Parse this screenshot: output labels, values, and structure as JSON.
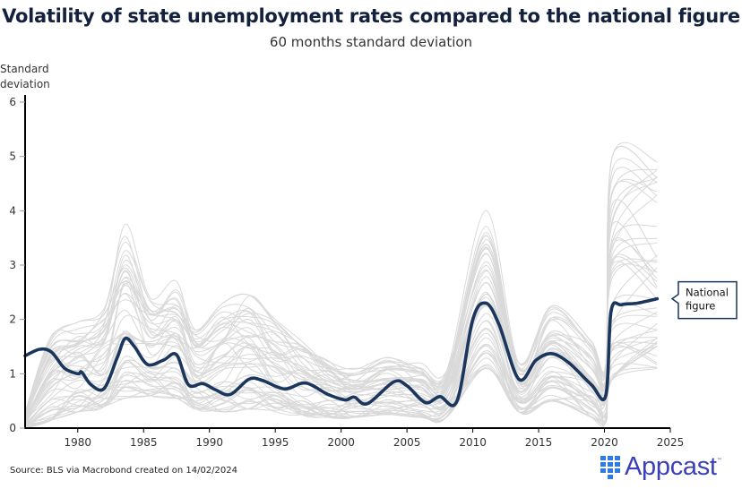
{
  "chart_data": {
    "type": "line",
    "title": "Volatility of state unemployment rates compared to the national figure",
    "subtitle": "60 months standard deviation",
    "ylabel": "Standard deviation",
    "xlabel": "",
    "xlim": [
      1976,
      2025
    ],
    "ylim": [
      0,
      6
    ],
    "x_ticks": [
      1980,
      1985,
      1990,
      1995,
      2000,
      2005,
      2010,
      2015,
      2020,
      2025
    ],
    "y_ticks": [
      0,
      1,
      2,
      3,
      4,
      5,
      6
    ],
    "grid": false,
    "legend": "none",
    "annotations": [
      {
        "text": [
          "National",
          "figure"
        ],
        "target_series": "National figure",
        "placement": "right-end"
      }
    ],
    "series": [
      {
        "name": "National figure",
        "color": "#1b365d",
        "x": [
          1976,
          1977.1,
          1978,
          1979,
          1980,
          1980.3,
          1981,
          1982,
          1983,
          1983.6,
          1984.3,
          1985.3,
          1986.5,
          1987.5,
          1988.4,
          1989.5,
          1990.5,
          1991.6,
          1993,
          1994,
          1995.7,
          1997.3,
          1999,
          2000.3,
          2001,
          2002,
          2004,
          2005,
          2006.4,
          2007.5,
          2008.8,
          2010,
          2011,
          2012,
          2013.5,
          2014.8,
          2016,
          2017.3,
          2019,
          2020.1,
          2020.5,
          2021.3,
          2022.5,
          2024
        ],
        "y": [
          1.33,
          1.45,
          1.4,
          1.1,
          1.0,
          1.03,
          0.8,
          0.73,
          1.3,
          1.65,
          1.5,
          1.17,
          1.25,
          1.35,
          0.8,
          0.82,
          0.7,
          0.62,
          0.9,
          0.88,
          0.72,
          0.83,
          0.62,
          0.52,
          0.57,
          0.45,
          0.85,
          0.78,
          0.47,
          0.58,
          0.5,
          2.0,
          2.3,
          1.9,
          0.9,
          1.25,
          1.37,
          1.2,
          0.8,
          0.6,
          2.15,
          2.27,
          2.3,
          2.38
        ]
      },
      {
        "name": "States (individual series, approx. envelope)",
        "color": "#d9d9d9",
        "count": 51,
        "x": [
          1976,
          1978,
          1980,
          1982,
          1983.6,
          1985.5,
          1987.5,
          1989,
          1991,
          1993,
          1995,
          1997,
          1999,
          2001,
          2003.5,
          2006,
          2008,
          2011,
          2013.5,
          2016,
          2019,
          2020.1,
          2020.6,
          2024
        ],
        "y_min": [
          0.0,
          0.15,
          0.3,
          0.4,
          0.55,
          0.6,
          0.55,
          0.35,
          0.3,
          0.35,
          0.3,
          0.25,
          0.2,
          0.2,
          0.25,
          0.2,
          0.2,
          1.1,
          0.3,
          0.5,
          0.2,
          0.1,
          0.9,
          1.1
        ],
        "y_max": [
          0.3,
          1.7,
          1.95,
          2.2,
          3.75,
          2.4,
          2.7,
          1.8,
          2.3,
          2.45,
          2.0,
          1.6,
          1.3,
          1.1,
          1.3,
          1.2,
          1.05,
          4.0,
          1.2,
          2.25,
          1.6,
          1.2,
          5.0,
          4.9
        ]
      }
    ]
  },
  "footer": {
    "source": "Source: BLS via Macrobond created on 14/02/2024",
    "logo_text": "Appcast",
    "logo_tm": "™"
  }
}
